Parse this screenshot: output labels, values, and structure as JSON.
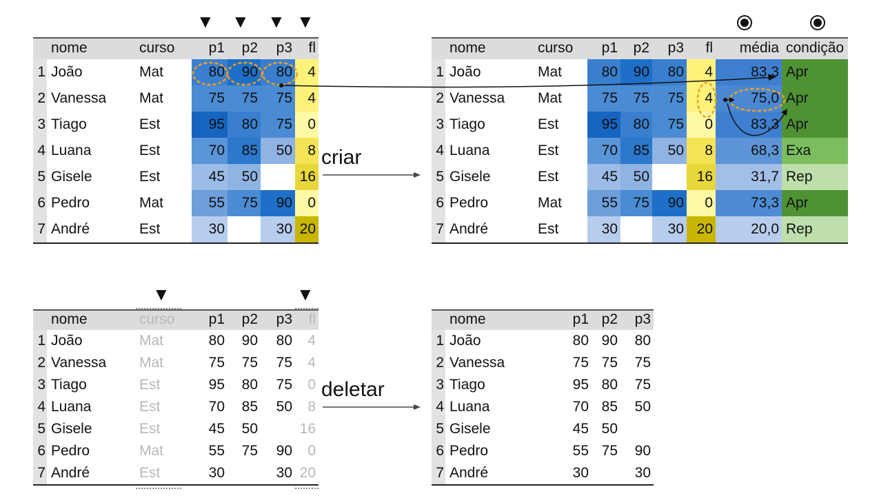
{
  "columns_full": [
    "nome",
    "curso",
    "p1",
    "p2",
    "p3",
    "fl"
  ],
  "columns_created": [
    "média",
    "condição"
  ],
  "columns_deleted_result": [
    "nome",
    "p1",
    "p2",
    "p3"
  ],
  "rows": [
    {
      "i": "1",
      "nome": "João",
      "curso": "Mat",
      "p1": "80",
      "p2": "90",
      "p3": "80",
      "fl": "4",
      "media": "83,3",
      "cond": "Apr"
    },
    {
      "i": "2",
      "nome": "Vanessa",
      "curso": "Mat",
      "p1": "75",
      "p2": "75",
      "p3": "75",
      "fl": "4",
      "media": "75,0",
      "cond": "Apr"
    },
    {
      "i": "3",
      "nome": "Tiago",
      "curso": "Est",
      "p1": "95",
      "p2": "80",
      "p3": "75",
      "fl": "0",
      "media": "83,3",
      "cond": "Apr"
    },
    {
      "i": "4",
      "nome": "Luana",
      "curso": "Est",
      "p1": "70",
      "p2": "85",
      "p3": "50",
      "fl": "8",
      "media": "68,3",
      "cond": "Exa"
    },
    {
      "i": "5",
      "nome": "Gisele",
      "curso": "Est",
      "p1": "45",
      "p2": "50",
      "p3": "",
      "fl": "16",
      "media": "31,7",
      "cond": "Rep"
    },
    {
      "i": "6",
      "nome": "Pedro",
      "curso": "Mat",
      "p1": "55",
      "p2": "75",
      "p3": "90",
      "fl": "0",
      "media": "73,3",
      "cond": "Apr"
    },
    {
      "i": "7",
      "nome": "André",
      "curso": "Est",
      "p1": "30",
      "p2": "",
      "p3": "30",
      "fl": "20",
      "media": "20,0",
      "cond": "Rep"
    }
  ],
  "labels": {
    "create": "criar",
    "delete": "deletar"
  },
  "colors": {
    "header_bg": "#dcdcdc",
    "index_bg": "#e2e2e2",
    "blue_scale": {
      "95": "#1565c0",
      "90": "#1e6fc8",
      "85": "#2b78cc",
      "80": "#3a7fcf",
      "75": "#4a8bd4",
      "70": "#5a95d8",
      "55": "#6e9fdc",
      "50": "#8fb3e3",
      "45": "#9cbce7",
      "30": "#b7cdee"
    },
    "yellow_scale": {
      "0": "#fff9a6",
      "4": "#fff27a",
      "8": "#f4e456",
      "16": "#e8d73a",
      "20": "#c8b600"
    },
    "media_scale": {
      "83,3": "#3f7fd0",
      "75,0": "#4a88d4",
      "73,3": "#4f8bd5",
      "68,3": "#5d94d8",
      "31,7": "#a3bfe8",
      "20,0": "#b8cdee"
    },
    "cond_colors": {
      "Apr": "#4f9234",
      "Exa": "#7cbd5e",
      "Rep": "#bedfab"
    },
    "highlight_circle": "#f0a020"
  },
  "markers": {
    "triangle": "▼"
  }
}
